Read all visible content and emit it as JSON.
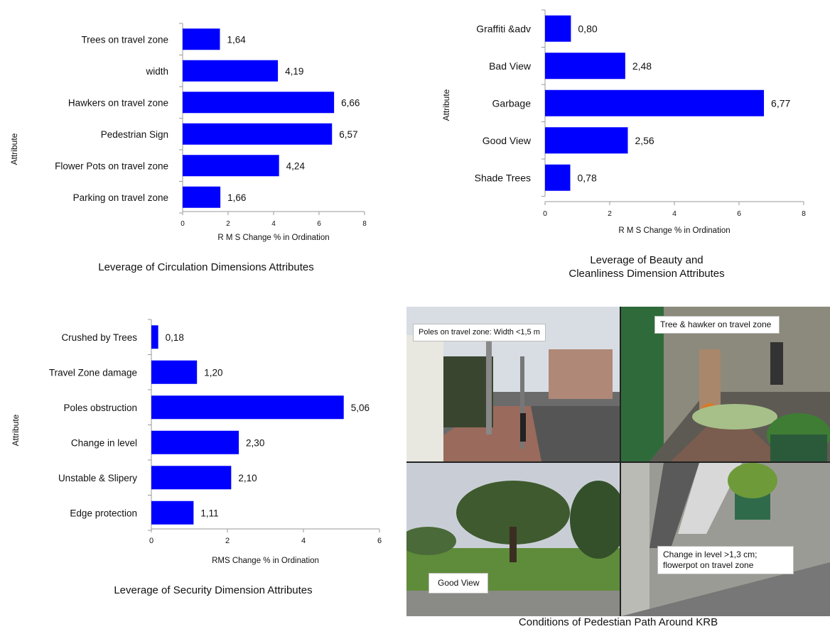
{
  "chart_data": [
    {
      "type": "bar",
      "orientation": "horizontal",
      "categories": [
        "Trees on travel zone",
        "width",
        "Hawkers on travel zone",
        "Pedestrian Sign",
        "Flower Pots on travel zone",
        "Parking on travel zone"
      ],
      "values": [
        1.64,
        4.19,
        6.66,
        6.57,
        4.24,
        1.66
      ],
      "value_labels": [
        "1,64",
        "4,19",
        "6,66",
        "6,57",
        "4,24",
        "1,66"
      ],
      "xlim": [
        0,
        8
      ],
      "xticks": [
        "0",
        "2",
        "4",
        "6",
        "8"
      ],
      "xlabel": "R M S  Change % in Ordination",
      "ylabel": "Attribute",
      "caption": "Leverage of Circulation Dimensions Attributes",
      "bar_color": "#0000ff",
      "grid": false,
      "legend": "none"
    },
    {
      "type": "bar",
      "orientation": "horizontal",
      "categories": [
        "Graffiti &adv",
        "Bad View",
        "Garbage",
        "Good View",
        "Shade Trees"
      ],
      "values": [
        0.8,
        2.48,
        6.77,
        2.56,
        0.78
      ],
      "value_labels": [
        "0,80",
        "2,48",
        "6,77",
        "2,56",
        "0,78"
      ],
      "xlim": [
        0,
        8
      ],
      "xticks": [
        "0",
        "2",
        "4",
        "6",
        "8"
      ],
      "xlabel": "R M S  Change % in Ordination",
      "ylabel": "Attribute",
      "caption": [
        "Leverage of  Beauty and",
        "Cleanliness Dimension Attributes"
      ],
      "bar_color": "#0000ff",
      "grid": false,
      "legend": "none"
    },
    {
      "type": "bar",
      "orientation": "horizontal",
      "categories": [
        "Crushed by Trees",
        "Travel Zone damage",
        "Poles obstruction",
        "Change in level",
        "Unstable & Slipery",
        "Edge protection"
      ],
      "values": [
        0.18,
        1.2,
        5.06,
        2.3,
        2.1,
        1.11
      ],
      "value_labels": [
        "0,18",
        "1,20",
        "5,06",
        "2,30",
        "2,10",
        "1,11"
      ],
      "xlim": [
        0,
        6
      ],
      "xticks": [
        "0",
        "2",
        "4",
        "6"
      ],
      "xlabel": "RMS Change % in Ordination",
      "ylabel": "Attribute",
      "caption": "Leverage of Security Dimension Attributes",
      "bar_color": "#0000ff",
      "grid": false,
      "legend": "none"
    }
  ],
  "photos": {
    "caption": "Conditions of Pedestian Path Around KRB",
    "items": [
      {
        "label": "Poles on travel zone:  Width <1,5 m"
      },
      {
        "label": "Tree & hawker on travel zone"
      },
      {
        "label": "Good View"
      },
      {
        "label": "Change in level >1,3 cm; flowerpot on travel zone"
      }
    ]
  }
}
